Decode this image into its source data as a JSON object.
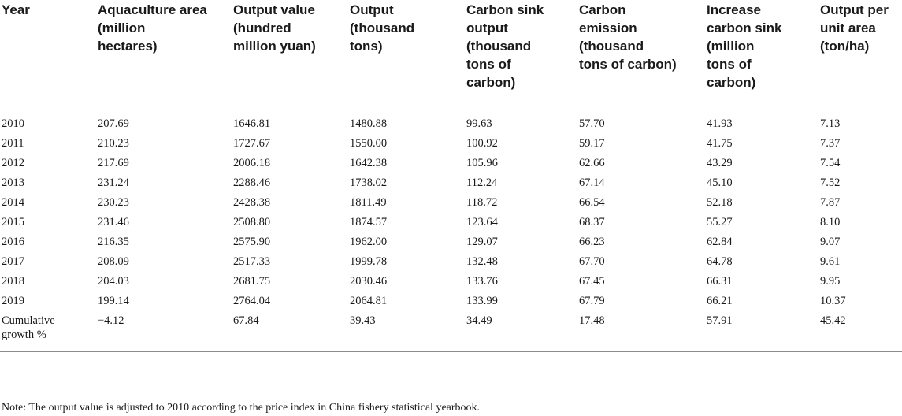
{
  "table": {
    "headers": [
      "Year",
      "Aquaculture area\n(million\nhectares)",
      "Output value\n(hundred\nmillion yuan)",
      "Output\n(thousand\ntons)",
      "Carbon sink\noutput\n(thousand\ntons of\ncarbon)",
      "Carbon\nemission\n(thousand\ntons of carbon)",
      "Increase\ncarbon sink\n(million\ntons of\ncarbon)",
      "Output per\nunit area\n(ton/ha)"
    ],
    "rows": [
      [
        "2010",
        "207.69",
        "1646.81",
        "1480.88",
        "99.63",
        "57.70",
        "41.93",
        "7.13"
      ],
      [
        "2011",
        "210.23",
        "1727.67",
        "1550.00",
        "100.92",
        "59.17",
        "41.75",
        "7.37"
      ],
      [
        "2012",
        "217.69",
        "2006.18",
        "1642.38",
        "105.96",
        "62.66",
        "43.29",
        "7.54"
      ],
      [
        "2013",
        "231.24",
        "2288.46",
        "1738.02",
        "112.24",
        "67.14",
        "45.10",
        "7.52"
      ],
      [
        "2014",
        "230.23",
        "2428.38",
        "1811.49",
        "118.72",
        "66.54",
        "52.18",
        "7.87"
      ],
      [
        "2015",
        "231.46",
        "2508.80",
        "1874.57",
        "123.64",
        "68.37",
        "55.27",
        "8.10"
      ],
      [
        "2016",
        "216.35",
        "2575.90",
        "1962.00",
        "129.07",
        "66.23",
        "62.84",
        "9.07"
      ],
      [
        "2017",
        "208.09",
        "2517.33",
        "1999.78",
        "132.48",
        "67.70",
        "64.78",
        "9.61"
      ],
      [
        "2018",
        "204.03",
        "2681.75",
        "2030.46",
        "133.76",
        "67.45",
        "66.31",
        "9.95"
      ],
      [
        "2019",
        "199.14",
        "2764.04",
        "2064.81",
        "133.99",
        "67.79",
        "66.21",
        "10.37"
      ],
      [
        "Cumulative\ngrowth %",
        "−4.12",
        "67.84",
        "39.43",
        "34.49",
        "17.48",
        "57.91",
        "45.42"
      ]
    ]
  },
  "note": "Note: The output value is adjusted to 2010 according to the price index in China fishery statistical yearbook."
}
